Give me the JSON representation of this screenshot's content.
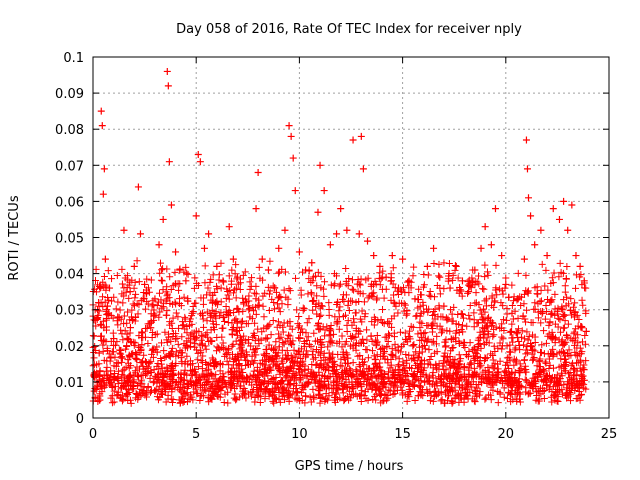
{
  "chart_data": {
    "type": "scatter",
    "title": "Day 058 of 2016, Rate Of TEC Index for receiver nply",
    "xlabel": "GPS time / hours",
    "ylabel": "ROTI / TECUs",
    "xlim": [
      0,
      25
    ],
    "ylim": [
      0,
      0.1
    ],
    "xticks": [
      0,
      5,
      10,
      15,
      20,
      25
    ],
    "xtick_labels": [
      "0",
      "5",
      "10",
      "15",
      "20",
      "25"
    ],
    "yticks": [
      0,
      0.01,
      0.02,
      0.03,
      0.04,
      0.05,
      0.06,
      0.07,
      0.08,
      0.09,
      0.1
    ],
    "ytick_labels": [
      "0",
      "0.01",
      "0.02",
      "0.03",
      "0.04",
      "0.05",
      "0.06",
      "0.07",
      "0.08",
      "0.09",
      "0.1"
    ],
    "grid": true,
    "marker": "+",
    "marker_color": "#ff0000",
    "series": [
      {
        "name": "ROTI",
        "x": [
          0.1,
          0.3,
          0.4,
          0.45,
          0.5,
          0.55,
          0.6,
          0.7,
          0.8,
          1.0,
          1.2,
          1.5,
          1.8,
          2.0,
          2.2,
          2.3,
          2.5,
          2.8,
          3.0,
          3.2,
          3.4,
          3.6,
          3.65,
          3.7,
          3.8,
          4.0,
          4.2,
          4.5,
          4.8,
          5.0,
          5.1,
          5.2,
          5.4,
          5.6,
          5.8,
          6.0,
          6.3,
          6.6,
          6.8,
          7.0,
          7.3,
          7.6,
          7.9,
          8.0,
          8.2,
          8.5,
          8.8,
          9.0,
          9.3,
          9.5,
          9.6,
          9.7,
          9.8,
          10.0,
          10.3,
          10.6,
          10.9,
          11.0,
          11.2,
          11.5,
          11.8,
          12.0,
          12.3,
          12.6,
          12.9,
          13.0,
          13.1,
          13.3,
          13.6,
          13.9,
          14.2,
          14.5,
          14.8,
          15.0,
          15.3,
          15.6,
          15.9,
          16.2,
          16.5,
          16.8,
          17.0,
          17.3,
          17.6,
          17.9,
          18.2,
          18.5,
          18.8,
          19.0,
          19.3,
          19.5,
          19.8,
          20.0,
          20.3,
          20.6,
          20.9,
          21.0,
          21.05,
          21.1,
          21.2,
          21.4,
          21.7,
          22.0,
          22.3,
          22.6,
          22.8,
          23.0,
          23.2,
          23.4,
          23.6,
          23.8,
          23.9
        ],
        "y": [
          0.012,
          0.018,
          0.085,
          0.081,
          0.062,
          0.069,
          0.044,
          0.031,
          0.036,
          0.022,
          0.028,
          0.052,
          0.035,
          0.042,
          0.064,
          0.051,
          0.037,
          0.025,
          0.033,
          0.048,
          0.055,
          0.096,
          0.092,
          0.071,
          0.059,
          0.046,
          0.041,
          0.038,
          0.029,
          0.056,
          0.073,
          0.071,
          0.047,
          0.051,
          0.034,
          0.042,
          0.038,
          0.053,
          0.044,
          0.039,
          0.032,
          0.028,
          0.058,
          0.068,
          0.044,
          0.041,
          0.036,
          0.047,
          0.052,
          0.081,
          0.078,
          0.072,
          0.063,
          0.046,
          0.041,
          0.043,
          0.057,
          0.07,
          0.063,
          0.048,
          0.051,
          0.058,
          0.052,
          0.077,
          0.051,
          0.078,
          0.069,
          0.049,
          0.045,
          0.042,
          0.039,
          0.045,
          0.036,
          0.044,
          0.038,
          0.033,
          0.029,
          0.042,
          0.047,
          0.039,
          0.031,
          0.036,
          0.042,
          0.038,
          0.035,
          0.041,
          0.047,
          0.053,
          0.048,
          0.058,
          0.045,
          0.037,
          0.029,
          0.033,
          0.044,
          0.077,
          0.069,
          0.061,
          0.056,
          0.048,
          0.052,
          0.045,
          0.058,
          0.055,
          0.06,
          0.052,
          0.059,
          0.045,
          0.042,
          0.038,
          0.024
        ]
      }
    ]
  }
}
